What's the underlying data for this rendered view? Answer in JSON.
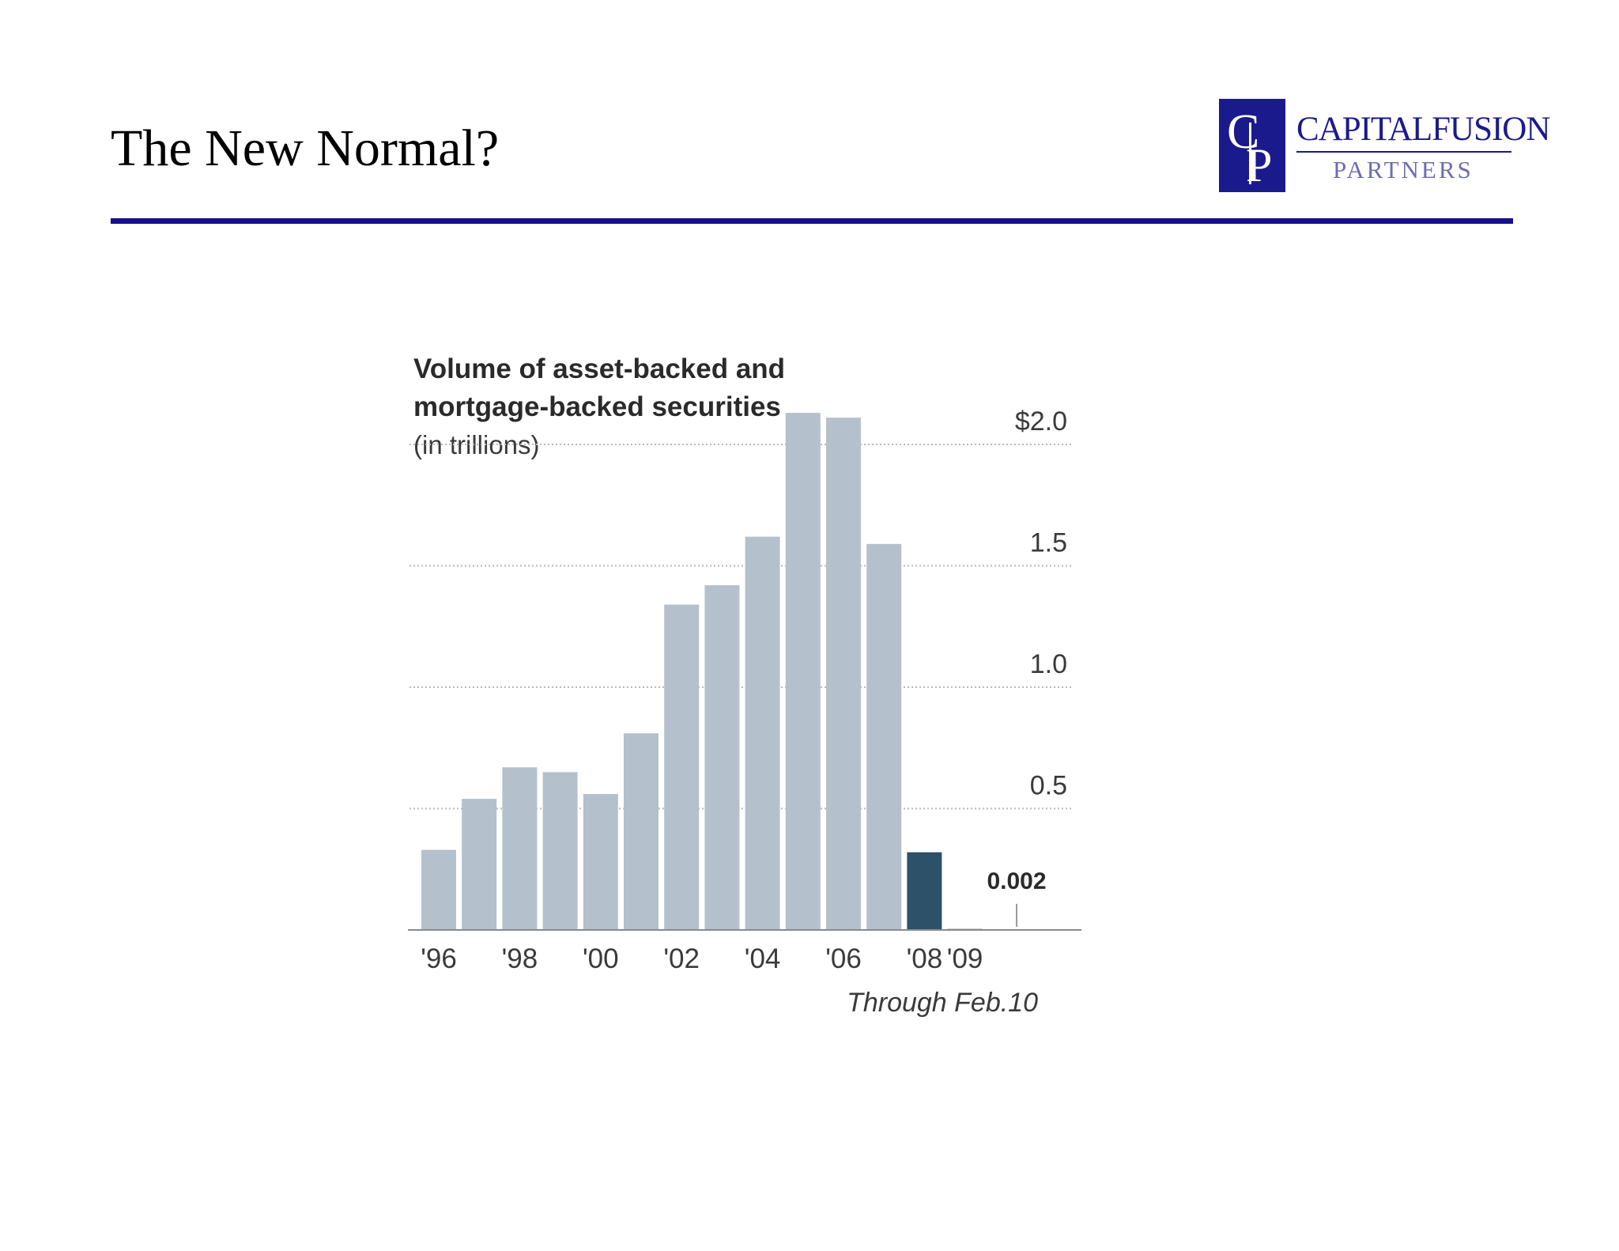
{
  "slide": {
    "title": "The New Normal?"
  },
  "logo": {
    "name": "CAPITALFUSION",
    "sub": "PARTNERS",
    "brand_color": "#1b1a8c"
  },
  "chart_data": {
    "type": "bar",
    "title_lines": [
      "Volume of asset-backed and",
      "mortgage-backed securities"
    ],
    "unit_label": "(in trillions)",
    "categories": [
      "'96",
      "'97",
      "'98",
      "'99",
      "'00",
      "'01",
      "'02",
      "'03",
      "'04",
      "'05",
      "'06",
      "'07",
      "'08",
      "'09"
    ],
    "values": [
      0.33,
      0.54,
      0.67,
      0.65,
      0.56,
      0.81,
      1.34,
      1.42,
      1.62,
      2.13,
      2.11,
      1.59,
      0.32,
      0.002
    ],
    "x_tick_labels": [
      "'96",
      "'98",
      "'00",
      "'02",
      "'04",
      "'06",
      "'08",
      "'09"
    ],
    "y_ticks": [
      0.5,
      1.0,
      1.5,
      2.0
    ],
    "y_tick_labels": [
      "0.5",
      "1.0",
      "1.5",
      "$2.0"
    ],
    "ylim": [
      0,
      2.2
    ],
    "annotation_value": "0.002",
    "footnote": "Through Feb.10",
    "bar_color": "#b4c1cc",
    "highlight_color": "#2c5168",
    "highlight_category": "'08",
    "grid": true
  }
}
